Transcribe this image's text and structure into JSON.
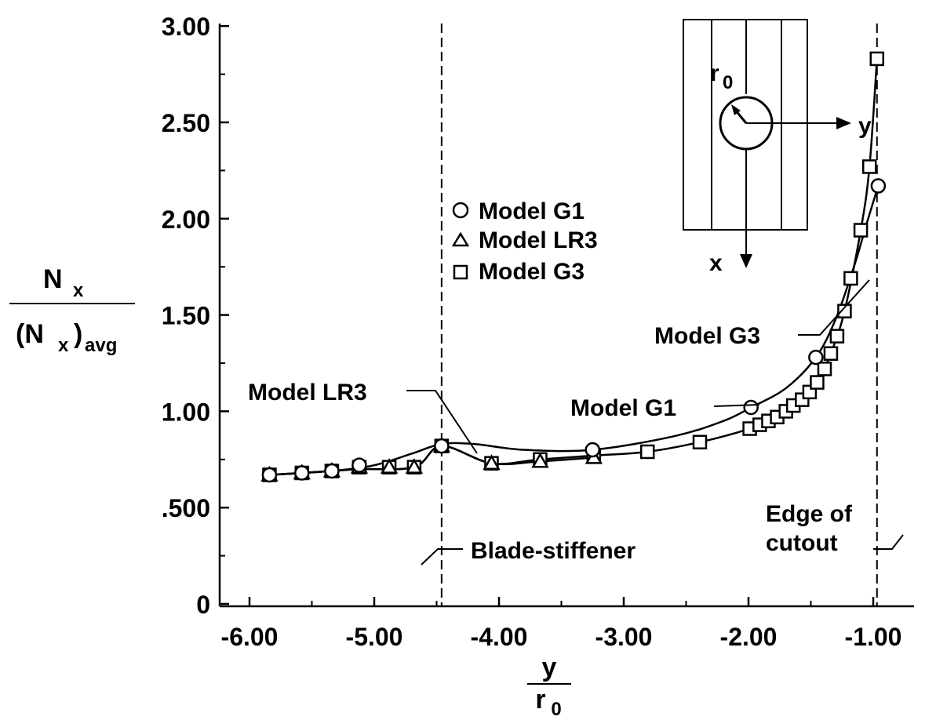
{
  "chart_data": {
    "type": "line",
    "title": "",
    "xlabel": {
      "num": "y",
      "den_main": "r",
      "den_sub": "0"
    },
    "ylabel": {
      "num_main": "N",
      "num_sub": "x",
      "den_main": "(N",
      "den_sub1": "x",
      "den_close": ")",
      "den_sub2": "avg"
    },
    "xlim": [
      -6.3,
      -0.9
    ],
    "ylim": [
      0,
      3.0
    ],
    "x_ticks": [
      {
        "value": -6.0,
        "label": "-6.00"
      },
      {
        "value": -5.0,
        "label": "-5.00"
      },
      {
        "value": -4.0,
        "label": "-4.00"
      },
      {
        "value": -3.0,
        "label": "-3.00"
      },
      {
        "value": -2.0,
        "label": "-2.00"
      },
      {
        "value": -1.0,
        "label": "-1.00"
      }
    ],
    "y_ticks": [
      {
        "value": 0,
        "label": "0"
      },
      {
        "value": 0.5,
        "label": ".500"
      },
      {
        "value": 1.0,
        "label": "1.00"
      },
      {
        "value": 1.5,
        "label": "1.50"
      },
      {
        "value": 2.0,
        "label": "2.00"
      },
      {
        "value": 2.5,
        "label": "2.50"
      },
      {
        "value": 3.0,
        "label": "3.00"
      }
    ],
    "series": [
      {
        "name": "Model G1",
        "marker": "circle",
        "points": [
          [
            -5.84,
            0.67
          ],
          [
            -5.58,
            0.68
          ],
          [
            -5.34,
            0.69
          ],
          [
            -5.12,
            0.72
          ],
          [
            -4.46,
            0.82
          ],
          [
            -3.25,
            0.8
          ],
          [
            -1.98,
            1.02
          ],
          [
            -1.46,
            1.28
          ],
          [
            -0.96,
            2.17
          ]
        ],
        "curve": [
          [
            -5.84,
            0.67
          ],
          [
            -5.34,
            0.69
          ],
          [
            -5.0,
            0.72
          ],
          [
            -4.7,
            0.78
          ],
          [
            -4.46,
            0.83
          ],
          [
            -4.2,
            0.83
          ],
          [
            -3.8,
            0.8
          ],
          [
            -3.25,
            0.8
          ],
          [
            -2.6,
            0.87
          ],
          [
            -2.2,
            0.95
          ],
          [
            -1.98,
            1.02
          ],
          [
            -1.7,
            1.12
          ],
          [
            -1.46,
            1.28
          ],
          [
            -1.3,
            1.48
          ],
          [
            -1.15,
            1.76
          ],
          [
            -1.05,
            1.98
          ],
          [
            -0.96,
            2.17
          ]
        ]
      },
      {
        "name": "Model LR3",
        "marker": "triangle",
        "points": [
          [
            -5.84,
            0.67
          ],
          [
            -5.58,
            0.68
          ],
          [
            -5.34,
            0.69
          ],
          [
            -5.12,
            0.71
          ],
          [
            -4.88,
            0.71
          ],
          [
            -4.68,
            0.71
          ],
          [
            -4.46,
            0.82
          ],
          [
            -4.06,
            0.73
          ],
          [
            -3.67,
            0.74
          ],
          [
            -3.24,
            0.76
          ]
        ],
        "curve": [
          [
            -5.84,
            0.67
          ],
          [
            -5.58,
            0.68
          ],
          [
            -5.34,
            0.69
          ],
          [
            -5.12,
            0.7
          ],
          [
            -4.68,
            0.71
          ],
          [
            -4.46,
            0.82
          ],
          [
            -4.06,
            0.73
          ],
          [
            -3.67,
            0.74
          ],
          [
            -3.24,
            0.76
          ]
        ]
      },
      {
        "name": "Model G3",
        "marker": "square",
        "points": [
          [
            -5.84,
            0.67
          ],
          [
            -5.58,
            0.68
          ],
          [
            -5.34,
            0.69
          ],
          [
            -5.12,
            0.71
          ],
          [
            -4.88,
            0.71
          ],
          [
            -4.68,
            0.71
          ],
          [
            -4.46,
            0.82
          ],
          [
            -4.06,
            0.73
          ],
          [
            -3.67,
            0.75
          ],
          [
            -3.24,
            0.77
          ],
          [
            -2.81,
            0.79
          ],
          [
            -2.39,
            0.84
          ],
          [
            -1.99,
            0.91
          ],
          [
            -1.91,
            0.93
          ],
          [
            -1.84,
            0.95
          ],
          [
            -1.77,
            0.97
          ],
          [
            -1.7,
            1.0
          ],
          [
            -1.64,
            1.03
          ],
          [
            -1.57,
            1.06
          ],
          [
            -1.51,
            1.1
          ],
          [
            -1.45,
            1.15
          ],
          [
            -1.39,
            1.22
          ],
          [
            -1.34,
            1.3
          ],
          [
            -1.29,
            1.39
          ],
          [
            -1.23,
            1.52
          ],
          [
            -1.18,
            1.69
          ],
          [
            -1.1,
            1.94
          ],
          [
            -1.03,
            2.27
          ],
          [
            -0.97,
            2.83
          ]
        ],
        "curve": [
          [
            -5.84,
            0.67
          ],
          [
            -5.58,
            0.68
          ],
          [
            -5.34,
            0.69
          ],
          [
            -5.12,
            0.7
          ],
          [
            -4.68,
            0.71
          ],
          [
            -4.46,
            0.82
          ],
          [
            -4.06,
            0.73
          ],
          [
            -3.67,
            0.75
          ],
          [
            -3.24,
            0.77
          ],
          [
            -2.81,
            0.79
          ],
          [
            -2.39,
            0.84
          ],
          [
            -1.99,
            0.91
          ],
          [
            -1.77,
            0.97
          ],
          [
            -1.57,
            1.06
          ],
          [
            -1.45,
            1.15
          ],
          [
            -1.34,
            1.3
          ],
          [
            -1.23,
            1.52
          ],
          [
            -1.1,
            1.94
          ],
          [
            -1.03,
            2.27
          ],
          [
            -0.97,
            2.83
          ]
        ]
      }
    ],
    "legend": {
      "placement": "center-top",
      "items": [
        {
          "symbol": "circle",
          "label": "Model G1"
        },
        {
          "symbol": "triangle",
          "label": "Model LR3"
        },
        {
          "symbol": "square",
          "label": "Model G3"
        }
      ]
    },
    "reference_lines": [
      {
        "x": -4.46,
        "label": "Blade-stiffener"
      },
      {
        "x": -0.97,
        "label_line1": "Edge of",
        "label_line2": "cutout"
      }
    ],
    "annotations": [
      {
        "text": "Model LR3",
        "target_series": "Model LR3"
      },
      {
        "text": "Model G1",
        "target_series": "Model G1"
      },
      {
        "text": "Model G3",
        "target_series": "Model G3"
      }
    ],
    "inset": {
      "r_main": "r",
      "r_sub": "0",
      "y_label": "y",
      "x_label": "x"
    }
  }
}
